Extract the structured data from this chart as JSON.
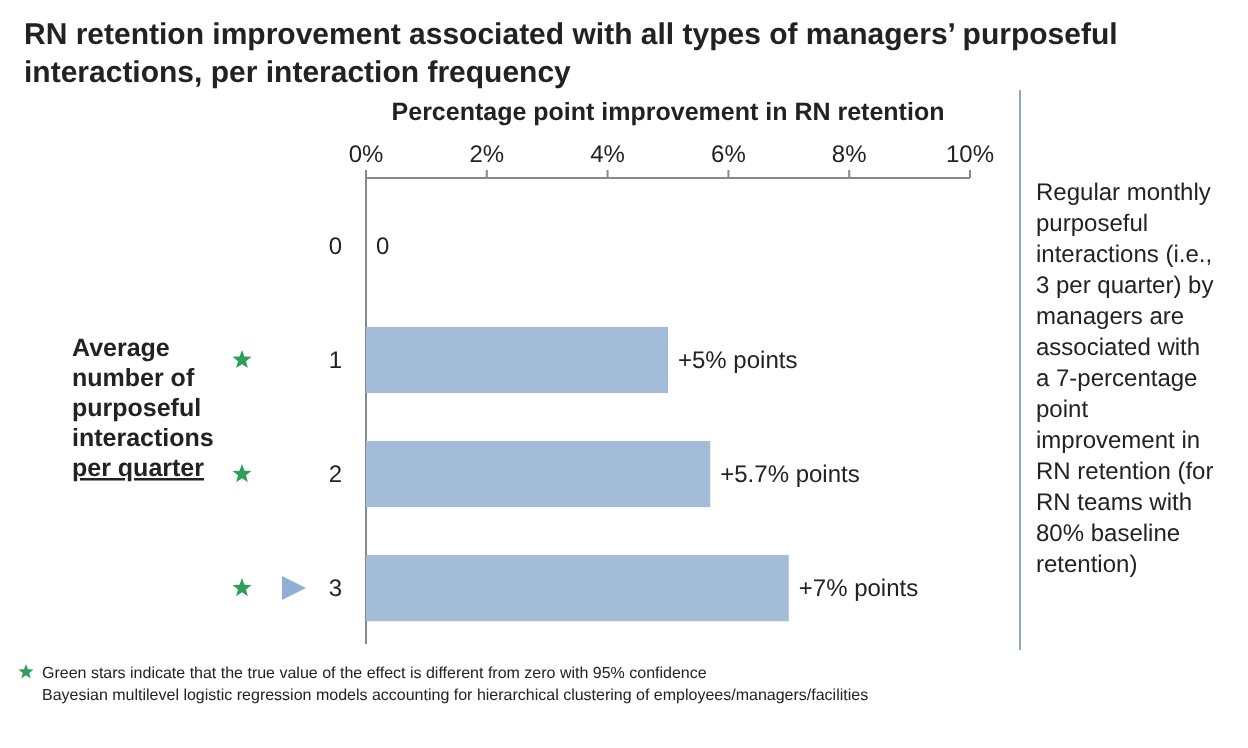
{
  "chart_data": {
    "type": "bar",
    "orientation": "horizontal",
    "title": "RN retention improvement associated with all types of managers’ purposeful interactions, per interaction frequency",
    "xlabel": "Percentage point improvement in RN retention",
    "ylabel": "Average number of purposeful interactions per quarter",
    "categories": [
      "0",
      "1",
      "2",
      "3"
    ],
    "values": [
      0,
      5,
      5.7,
      7
    ],
    "color": "#a3bdd8",
    "value_labels": [
      "0",
      "+5% points",
      "+5.7% points",
      "+7% points"
    ],
    "xlim": [
      0,
      10
    ],
    "xticks": [
      {
        "value": 0,
        "label": "0%"
      },
      {
        "value": 2,
        "label": "2%"
      },
      {
        "value": 4,
        "label": "4%"
      },
      {
        "value": 6,
        "label": "6%"
      },
      {
        "value": 8,
        "label": "8%"
      },
      {
        "value": 10,
        "label": "10%"
      }
    ],
    "grid": false,
    "annotations": [
      "Regular monthly purposeful interactions (i.e., 3 per quarter) by managers are associated with a 7-percentage point improvement in RN retention (for RN teams with 80% baseline retention)",
      "Green stars indicate that the true value of the effect is different from zero with 95% confidence",
      "Bayesian multilevel logistic regression models accounting for hierarchical clustering of employees/managers/facilities"
    ]
  }
}
